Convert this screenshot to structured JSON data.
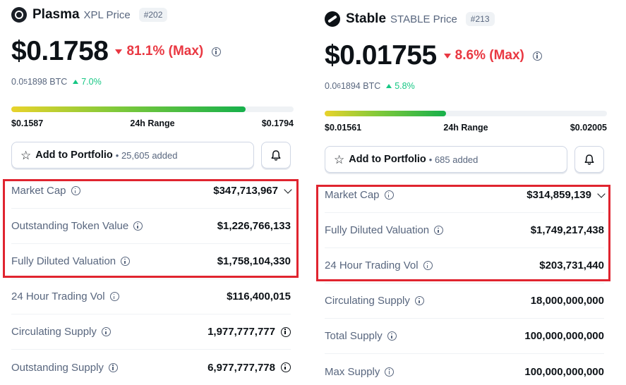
{
  "left": {
    "name": "Plasma",
    "symbol": "XPL Price",
    "rank": "#202",
    "price": "$0.1758",
    "change": "81.1% (Max)",
    "btc_prefix": "0.0",
    "btc_sub": "5",
    "btc_rest": "1898 BTC",
    "btc_change": "7.0%",
    "range_low": "$0.1587",
    "range_label": "24h Range",
    "range_high": "$0.1794",
    "range_position": 0.83,
    "portfolio_label": "Add to Portfolio",
    "portfolio_count": "• 25,605 added",
    "stats": [
      {
        "label": "Market Cap",
        "value": "$347,713,967"
      },
      {
        "label": "Outstanding Token Value",
        "value": "$1,226,766,133"
      },
      {
        "label": "Fully Diluted Valuation",
        "value": "$1,758,104,330"
      },
      {
        "label": "24 Hour Trading Vol",
        "value": "$116,400,015"
      },
      {
        "label": "Circulating Supply",
        "value": "1,977,777,777"
      },
      {
        "label": "Outstanding Supply",
        "value": "6,977,777,778"
      }
    ]
  },
  "right": {
    "name": "Stable",
    "symbol": "STABLE Price",
    "rank": "#213",
    "price": "$0.01755",
    "change": "8.6% (Max)",
    "btc_prefix": "0.0",
    "btc_sub": "6",
    "btc_rest": "1894 BTC",
    "btc_change": "5.8%",
    "range_low": "$0.01561",
    "range_label": "24h Range",
    "range_high": "$0.02005",
    "range_position": 0.43,
    "portfolio_label": "Add to Portfolio",
    "portfolio_count": "• 685 added",
    "stats": [
      {
        "label": "Market Cap",
        "value": "$314,859,139"
      },
      {
        "label": "Fully Diluted Valuation",
        "value": "$1,749,217,438"
      },
      {
        "label": "24 Hour Trading Vol",
        "value": "$203,731,440"
      },
      {
        "label": "Circulating Supply",
        "value": "18,000,000,000"
      },
      {
        "label": "Total Supply",
        "value": "100,000,000,000"
      },
      {
        "label": "Max Supply",
        "value": "100,000,000,000"
      }
    ]
  },
  "colors": {
    "negative": "#e93842",
    "positive": "#16c784",
    "highlight": "#e0242f"
  }
}
